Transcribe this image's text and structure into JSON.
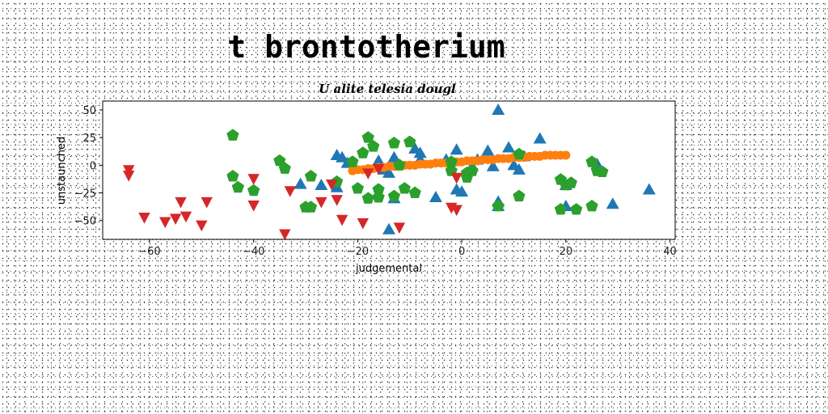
{
  "banner": {
    "title": "t brontotherium"
  },
  "chart_data": {
    "type": "scatter",
    "title": "U alite telesia dougl",
    "xlabel": "judgemental",
    "ylabel": "unstaunched",
    "xlim": [
      -69,
      41
    ],
    "ylim": [
      -67,
      58
    ],
    "xticks": [
      -60,
      -40,
      -20,
      0,
      20,
      40
    ],
    "yticks": [
      50,
      25,
      0,
      -25,
      -50
    ],
    "grid": false,
    "legend": "none",
    "series": [
      {
        "marker": "triangle-up",
        "color": "#1f77b4",
        "points": [
          [
            7,
            50
          ],
          [
            15,
            24
          ],
          [
            -24,
            9
          ],
          [
            -23,
            7
          ],
          [
            -22,
            2
          ],
          [
            -16,
            4
          ],
          [
            -15,
            -4
          ],
          [
            -14,
            -7
          ],
          [
            -13,
            7
          ],
          [
            -13,
            -30
          ],
          [
            -14,
            -58
          ],
          [
            -9,
            15
          ],
          [
            -8,
            11
          ],
          [
            -8,
            5
          ],
          [
            -5,
            -29
          ],
          [
            -3,
            5
          ],
          [
            -1,
            14
          ],
          [
            -1,
            -22
          ],
          [
            0,
            -24
          ],
          [
            2,
            -1
          ],
          [
            3,
            5
          ],
          [
            5,
            13
          ],
          [
            6,
            -1
          ],
          [
            7,
            -33
          ],
          [
            7,
            -37
          ],
          [
            9,
            16
          ],
          [
            10,
            0
          ],
          [
            11,
            -4
          ],
          [
            12,
            8
          ],
          [
            20,
            -18
          ],
          [
            20,
            -37
          ],
          [
            26,
            1
          ],
          [
            29,
            -35
          ],
          [
            36,
            -22
          ],
          [
            -31,
            -17
          ],
          [
            -27,
            -18
          ],
          [
            -24,
            -20
          ]
        ]
      },
      {
        "marker": "circle",
        "color": "#ff7f0e",
        "points": [
          [
            -21,
            -5
          ],
          [
            -20,
            -4
          ],
          [
            -19,
            -4
          ],
          [
            -18,
            -3
          ],
          [
            -17,
            -3
          ],
          [
            -16,
            -2
          ],
          [
            -15,
            -2
          ],
          [
            -14,
            -1
          ],
          [
            -13,
            -1
          ],
          [
            -12,
            -1
          ],
          [
            -11,
            0
          ],
          [
            -10,
            0
          ],
          [
            -9,
            0
          ],
          [
            -8,
            1
          ],
          [
            -7,
            1
          ],
          [
            -6,
            1
          ],
          [
            -5,
            2
          ],
          [
            -4,
            2
          ],
          [
            -3,
            2
          ],
          [
            -2,
            3
          ],
          [
            -1,
            3
          ],
          [
            0,
            3
          ],
          [
            1,
            4
          ],
          [
            2,
            4
          ],
          [
            3,
            4
          ],
          [
            4,
            5
          ],
          [
            5,
            5
          ],
          [
            6,
            5
          ],
          [
            7,
            6
          ],
          [
            8,
            6
          ],
          [
            9,
            6
          ],
          [
            10,
            7
          ],
          [
            11,
            7
          ],
          [
            12,
            7
          ],
          [
            13,
            8
          ],
          [
            14,
            8
          ],
          [
            15,
            8
          ],
          [
            16,
            9
          ],
          [
            17,
            9
          ],
          [
            18,
            9
          ],
          [
            19,
            9
          ],
          [
            20,
            9
          ]
        ]
      },
      {
        "marker": "pentagon",
        "color": "#2ca02c",
        "points": [
          [
            -44,
            27
          ],
          [
            -44,
            -10
          ],
          [
            -43,
            -20
          ],
          [
            -40,
            -23
          ],
          [
            -35,
            4
          ],
          [
            -34,
            -3
          ],
          [
            -30,
            -38
          ],
          [
            -29,
            -38
          ],
          [
            -29,
            -10
          ],
          [
            -24,
            -15
          ],
          [
            -21,
            3
          ],
          [
            -20,
            -21
          ],
          [
            -19,
            11
          ],
          [
            -18,
            25
          ],
          [
            -18,
            -30
          ],
          [
            -17,
            17
          ],
          [
            -16,
            -22
          ],
          [
            -16,
            -29
          ],
          [
            -13,
            -28
          ],
          [
            -13,
            20
          ],
          [
            -12,
            0
          ],
          [
            -11,
            -21
          ],
          [
            -10,
            21
          ],
          [
            -9,
            -25
          ],
          [
            -2,
            3
          ],
          [
            -2,
            -5
          ],
          [
            1,
            -11
          ],
          [
            1,
            -7
          ],
          [
            2,
            -5
          ],
          [
            7,
            -37
          ],
          [
            11,
            -28
          ],
          [
            11,
            10
          ],
          [
            19,
            -13
          ],
          [
            19,
            -40
          ],
          [
            20,
            -18
          ],
          [
            21,
            -16
          ],
          [
            22,
            -40
          ],
          [
            25,
            -37
          ],
          [
            25,
            3
          ],
          [
            26,
            -5
          ],
          [
            27,
            -6
          ]
        ]
      },
      {
        "marker": "triangle-down",
        "color": "#d62728",
        "points": [
          [
            -64,
            -4
          ],
          [
            -64,
            -9
          ],
          [
            -61,
            -47
          ],
          [
            -57,
            -51
          ],
          [
            -55,
            -48
          ],
          [
            -54,
            -33
          ],
          [
            -53,
            -46
          ],
          [
            -50,
            -54
          ],
          [
            -49,
            -33
          ],
          [
            -40,
            -12
          ],
          [
            -40,
            -36
          ],
          [
            -34,
            -62
          ],
          [
            -33,
            -23
          ],
          [
            -27,
            -33
          ],
          [
            -25,
            -17
          ],
          [
            -24,
            -31
          ],
          [
            -23,
            -49
          ],
          [
            -19,
            -52
          ],
          [
            -18,
            -7
          ],
          [
            -16,
            -3
          ],
          [
            -12,
            -56
          ],
          [
            -1,
            -40
          ],
          [
            -2,
            -38
          ],
          [
            -1,
            -11
          ]
        ]
      }
    ]
  }
}
